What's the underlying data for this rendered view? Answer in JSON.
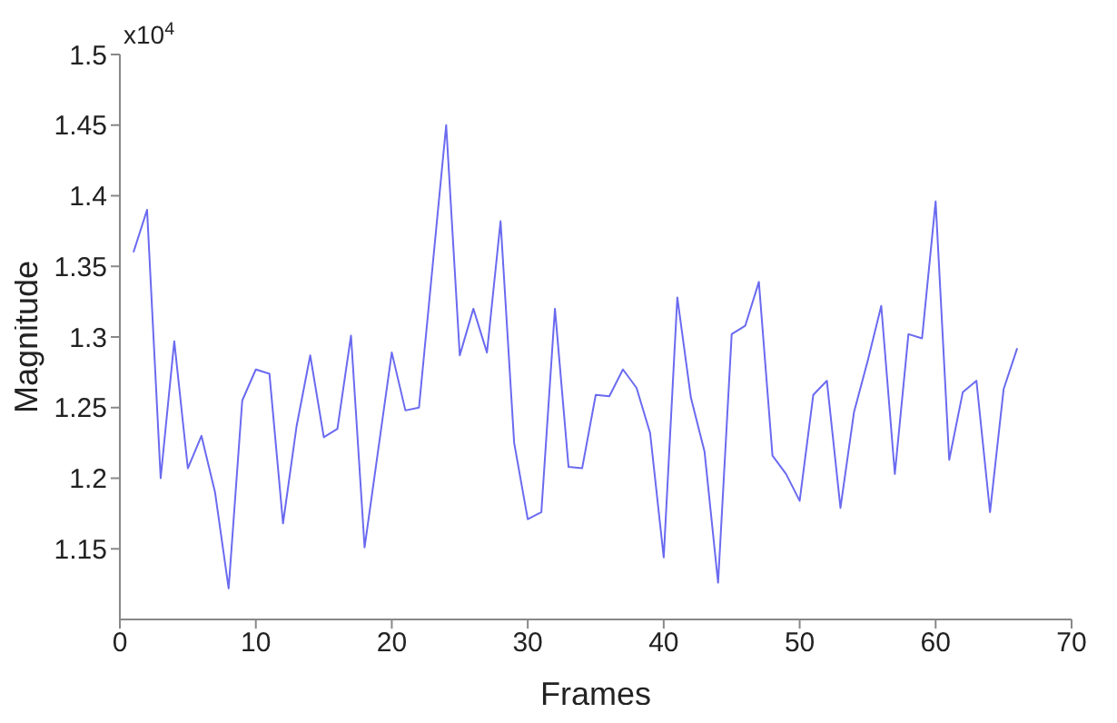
{
  "chart_data": {
    "type": "line",
    "xlabel": "Frames",
    "ylabel": "Magnitude",
    "annotations": [
      "x10$^{4}$"
    ],
    "x": [
      1,
      2,
      3,
      4,
      5,
      6,
      7,
      8,
      9,
      10,
      11,
      12,
      13,
      14,
      15,
      16,
      17,
      18,
      19,
      20,
      21,
      22,
      23,
      24,
      25,
      26,
      27,
      28,
      29,
      30,
      31,
      32,
      33,
      34,
      35,
      36,
      37,
      38,
      39,
      40,
      41,
      42,
      43,
      44,
      45,
      46,
      47,
      48,
      49,
      50,
      51,
      52,
      53,
      54,
      55,
      56,
      57,
      58,
      59,
      60,
      61,
      62,
      63,
      64,
      65,
      66
    ],
    "series": [
      {
        "color": "#6a6af0",
        "values": [
          1.36,
          1.39,
          1.2,
          1.297,
          1.207,
          1.23,
          1.19,
          1.122,
          1.255,
          1.277,
          1.274,
          1.168,
          1.237,
          1.287,
          1.229,
          1.235,
          1.301,
          1.151,
          1.22,
          1.289,
          1.248,
          1.25,
          1.35,
          1.45,
          1.287,
          1.32,
          1.289,
          1.382,
          1.225,
          1.171,
          1.176,
          1.32,
          1.208,
          1.207,
          1.259,
          1.258,
          1.277,
          1.264,
          1.232,
          1.144,
          1.328,
          1.257,
          1.219,
          1.126,
          1.302,
          1.308,
          1.339,
          1.216,
          1.203,
          1.184,
          1.259,
          1.269,
          1.179,
          1.247,
          1.283,
          1.322,
          1.203,
          1.302,
          1.299,
          1.396,
          1.213,
          1.261,
          1.269,
          1.176,
          1.263,
          1.292
        ]
      }
    ],
    "xlim": [
      0,
      70
    ],
    "xticks": [
      0,
      10,
      20,
      30,
      40,
      50,
      60,
      70
    ],
    "ylim": [
      1.1,
      1.5
    ],
    "yticks": [
      1.15,
      1.2,
      1.25,
      1.3,
      1.35,
      1.4,
      1.45,
      1.5
    ],
    "grid": false,
    "legend": false,
    "marker": "none",
    "line_style": "solid"
  }
}
